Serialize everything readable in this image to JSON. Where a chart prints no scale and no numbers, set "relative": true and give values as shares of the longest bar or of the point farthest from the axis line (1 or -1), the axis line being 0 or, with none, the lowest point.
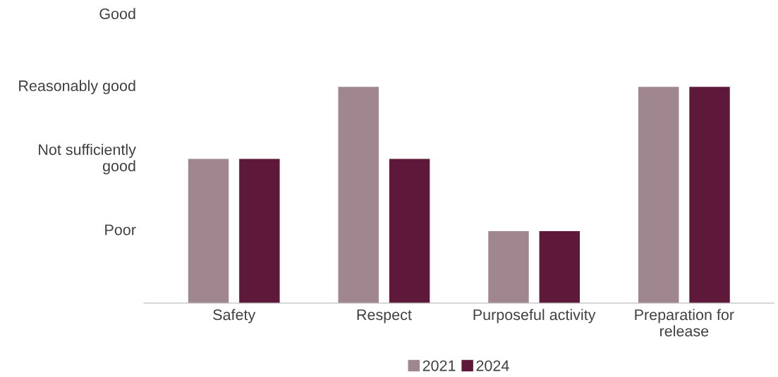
{
  "chart_data": {
    "type": "bar",
    "categories": [
      "Safety",
      "Respect",
      "Purposeful activity",
      "Preparation for\nrelease"
    ],
    "series": [
      {
        "name": "2021",
        "color": "#a0868e",
        "values": [
          0.667,
          1,
          0.333,
          1
        ]
      },
      {
        "name": "2024",
        "color": "#5e1839",
        "values": [
          0.667,
          0.667,
          0.333,
          1
        ]
      }
    ],
    "relative": true,
    "annotations": [
      "Poor",
      "Not sufficiently\ngood",
      "Reasonably good",
      "Good"
    ],
    "legend": "bottom"
  }
}
